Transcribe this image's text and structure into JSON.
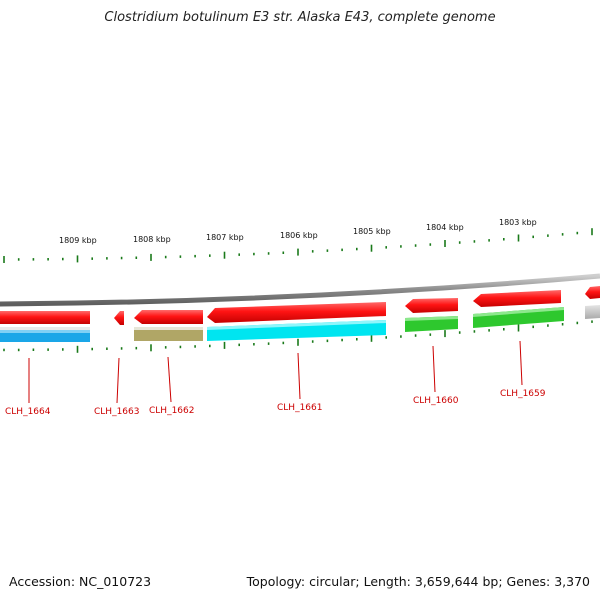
{
  "title": "Clostridium botulinum E3 str. Alaska E43, complete genome",
  "footer": {
    "accession_text": "Accession: NC_010723",
    "topology_text": "Topology: circular; Length: 3,659,644 bp; Genes: 3,370"
  },
  "colors": {
    "forward_gene": "#ee0000",
    "backbone": "#888888",
    "tick": "#1a7a1a",
    "label": "#cc0000"
  },
  "ruler": {
    "unit": "kbp",
    "labels": [
      "1809 kbp",
      "1808 kbp",
      "1807 kbp",
      "1806 kbp",
      "1805 kbp",
      "1804 kbp",
      "1803 kbp"
    ]
  },
  "genes": [
    {
      "label": "CLH_1664",
      "strand": "forward",
      "cog_color": "#1aa6e8"
    },
    {
      "label": "CLH_1663",
      "strand": "reverse",
      "cog_color": ""
    },
    {
      "label": "CLH_1662",
      "strand": "reverse",
      "cog_color": "#b0a666"
    },
    {
      "label": "CLH_1661",
      "strand": "reverse",
      "cog_color": "#00e5f0"
    },
    {
      "label": "CLH_1660",
      "strand": "reverse",
      "cog_color": "#2ec82e"
    },
    {
      "label": "CLH_1659",
      "strand": "reverse",
      "cog_color": "#2ec82e"
    }
  ]
}
